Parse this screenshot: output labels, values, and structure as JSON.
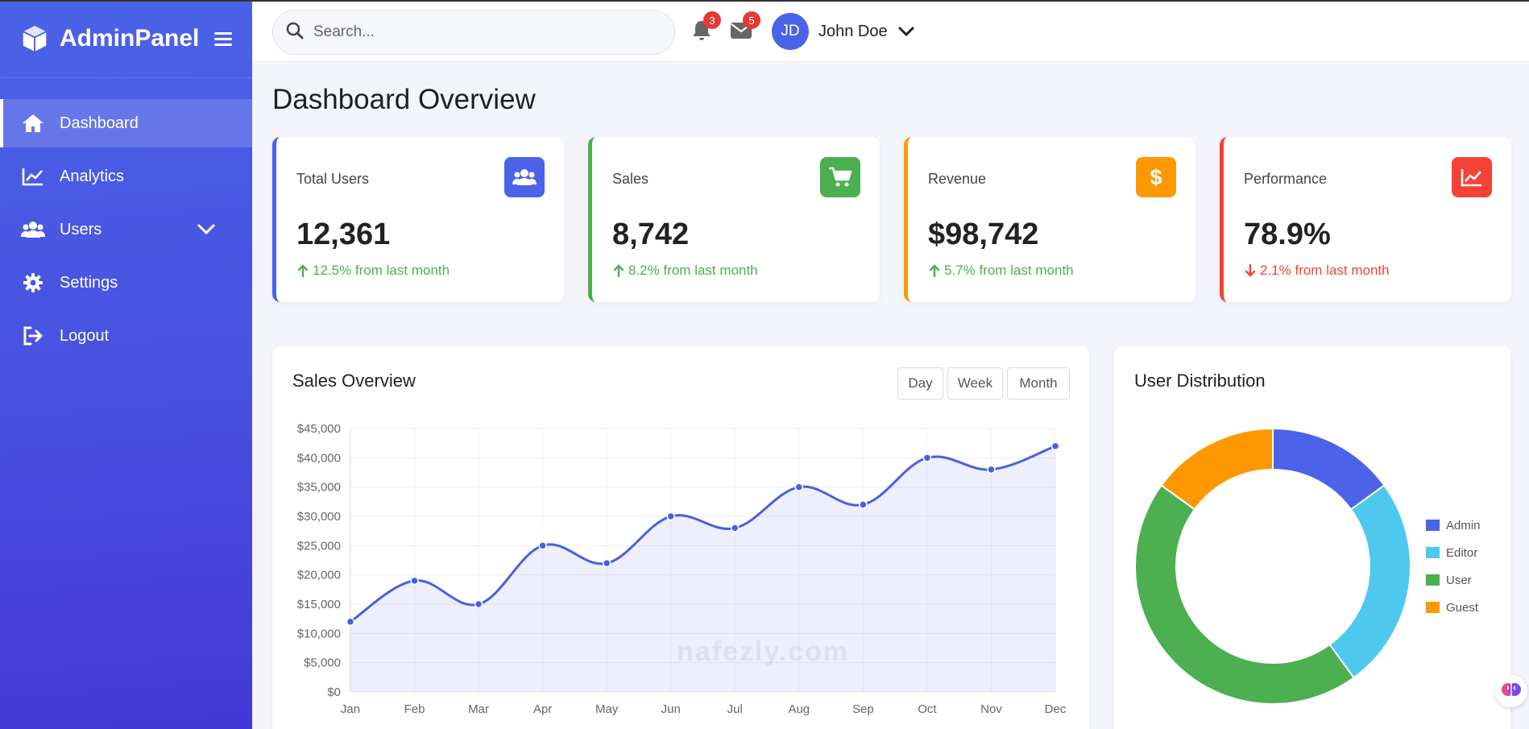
{
  "brand": {
    "name": "AdminPanel"
  },
  "sidebar": {
    "items": [
      {
        "label": "Dashboard",
        "icon": "home-icon",
        "active": true
      },
      {
        "label": "Analytics",
        "icon": "chart-line-icon"
      },
      {
        "label": "Users",
        "icon": "users-icon",
        "expandable": true
      },
      {
        "label": "Settings",
        "icon": "gear-icon"
      },
      {
        "label": "Logout",
        "icon": "logout-icon"
      }
    ]
  },
  "header": {
    "search_placeholder": "Search...",
    "notifications_count": "3",
    "messages_count": "5",
    "user": {
      "initials": "JD",
      "name": "John Doe"
    }
  },
  "page_title": "Dashboard Overview",
  "stats": [
    {
      "title": "Total Users",
      "value": "12,361",
      "change": "12.5% from last month",
      "direction": "up",
      "color": "#4a63e8",
      "icon": "users-icon"
    },
    {
      "title": "Sales",
      "value": "8,742",
      "change": "8.2% from last month",
      "direction": "up",
      "color": "#4caf50",
      "icon": "cart-icon"
    },
    {
      "title": "Revenue",
      "value": "$98,742",
      "change": "5.7% from last month",
      "direction": "up",
      "color": "#ff9800",
      "icon": "dollar-icon"
    },
    {
      "title": "Performance",
      "value": "78.9%",
      "change": "2.1% from last month",
      "direction": "down",
      "color": "#f44336",
      "icon": "chart-line-icon"
    }
  ],
  "sales_panel": {
    "title": "Sales Overview",
    "buttons": [
      "Day",
      "Week",
      "Month"
    ]
  },
  "distribution_panel": {
    "title": "User Distribution"
  },
  "watermark": "nafezly.com",
  "chart_data": [
    {
      "type": "area",
      "title": "Sales Overview",
      "categories": [
        "Jan",
        "Feb",
        "Mar",
        "Apr",
        "May",
        "Jun",
        "Jul",
        "Aug",
        "Sep",
        "Oct",
        "Nov",
        "Dec"
      ],
      "series": [
        {
          "values": [
            12000,
            19000,
            15000,
            25000,
            22000,
            30000,
            28000,
            35000,
            32000,
            40000,
            38000,
            42000
          ],
          "color": "#4a5fe0"
        }
      ],
      "ylim": [
        0,
        45000
      ],
      "yticks": [
        "$0",
        "$5,000",
        "$10,000",
        "$15,000",
        "$20,000",
        "$25,000",
        "$30,000",
        "$35,000",
        "$40,000",
        "$45,000"
      ],
      "grid": true
    },
    {
      "type": "pie",
      "title": "User Distribution",
      "labels": [
        "Admin",
        "Editor",
        "User",
        "Guest"
      ],
      "values": [
        15,
        25,
        45,
        15
      ],
      "colors": [
        "#4a63e8",
        "#4fc8ef",
        "#4caf50",
        "#ff9800"
      ],
      "donut": true,
      "legend": "right"
    }
  ],
  "colors": {
    "accent": "#4a63e8",
    "up": "#4caf50",
    "down": "#f44336"
  }
}
